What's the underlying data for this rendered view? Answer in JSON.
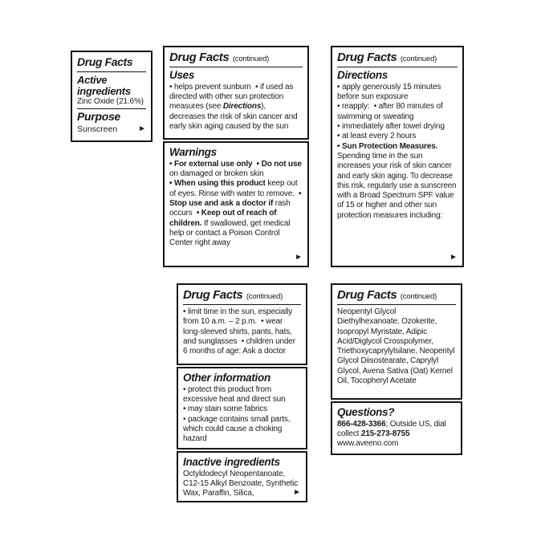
{
  "colors": {
    "ink": "#1a1a1a",
    "background": "#ffffff",
    "border": "#161616"
  },
  "arrow_icon": "►",
  "panel_active": {
    "title": "Drug Facts",
    "active_heading": "Active ingredients",
    "active_value": "Zinc Oxide (21.6%)",
    "purpose_heading": "Purpose",
    "purpose_value": "Sunscreen"
  },
  "panel_uses": {
    "title": "Drug Facts",
    "continued": "(continued)",
    "heading": "Uses",
    "body": [
      {
        "t": "• helps prevent sunburn  • if used as directed with other sun protection measures (see "
      },
      {
        "t": "Directions",
        "bi": true
      },
      {
        "t": "), decreases the risk of skin cancer and early skin aging caused by the sun"
      }
    ]
  },
  "panel_warnings": {
    "heading": "Warnings",
    "body": [
      {
        "t": "• For external use only  • Do not use",
        "b": true
      },
      {
        "t": " on damaged or broken skin\n"
      },
      {
        "t": "• When using this product",
        "b": true
      },
      {
        "t": " keep out of eyes. Rinse with water to remove.  "
      },
      {
        "t": "• Stop use and ask a doctor if",
        "b": true
      },
      {
        "t": " rash occurs  "
      },
      {
        "t": "• Keep out of reach of children.",
        "b": true
      },
      {
        "t": " If swallowed, get medical help or contact a Poison Control Center right away"
      }
    ]
  },
  "panel_directions": {
    "title": "Drug Facts",
    "continued": "(continued)",
    "heading": "Directions",
    "body": [
      {
        "t": "• apply generously 15 minutes before sun exposure\n"
      },
      {
        "t": "• reapply:  • after 80 minutes of swimming or sweating\n"
      },
      {
        "t": "• immediately after towel drying\n"
      },
      {
        "t": "• at least every 2 hours\n"
      },
      {
        "t": "• Sun Protection Measures.",
        "b": true
      },
      {
        "t": " Spending time in the sun increases your risk of skin cancer and early skin aging. To decrease this risk, regularly use a sunscreen with a Broad Spectrum SPF value of 15 or higher and other sun protection measures including:"
      }
    ]
  },
  "panel_sun_limits": {
    "title": "Drug Facts",
    "continued": "(continued)",
    "body": [
      {
        "t": "• limit time in the sun, especially from 10 a.m. – 2 p.m.  • wear long-sleeved shirts, pants, hats, and sunglasses  • children under 6 months of age: Ask a doctor"
      }
    ]
  },
  "panel_other": {
    "heading": "Other information",
    "body": [
      {
        "t": "• protect this product from excessive heat and direct sun\n"
      },
      {
        "t": "• may stain some fabrics\n"
      },
      {
        "t": "• package contains small parts, which could cause a choking hazard"
      }
    ]
  },
  "panel_inactive": {
    "heading": "Inactive ingredients",
    "body": [
      {
        "t": "Octyldodecyl Neopentanoate, C12-15 Alkyl Benzoate, Synthetic Wax, Paraffin, Silica,"
      }
    ]
  },
  "panel_ingredients": {
    "title": "Drug Facts",
    "continued": "(continued)",
    "body": [
      {
        "t": "Neopentyl Glycol Diethylhexanoate, Ozokerite, Isopropyl Myristate, Adipic Acid/Diglycol Crosspolymer, Triethoxycaprylylsilane, Neopentyl Glycol Diisostearate, Caprylyl Glycol, Avena Sativa (Oat) Kernel Oil, Tocopheryl Acetate"
      }
    ]
  },
  "panel_questions": {
    "heading": "Questions?",
    "body": [
      {
        "t": "866-428-3366",
        "b": true
      },
      {
        "t": "; Outside US, dial collect "
      },
      {
        "t": "215-273-8755",
        "b": true
      },
      {
        "t": "\nwww.aveeno.com"
      }
    ]
  }
}
